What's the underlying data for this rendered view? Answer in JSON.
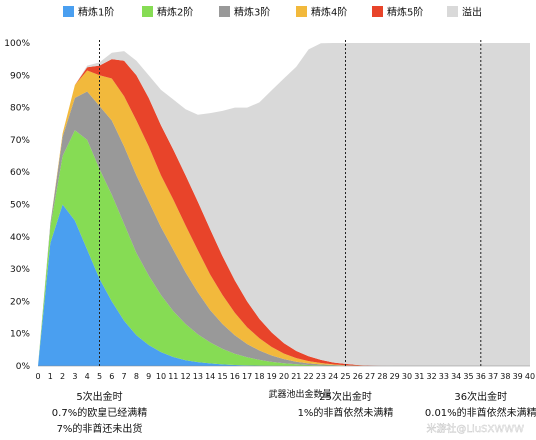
{
  "chart_data": {
    "type": "area",
    "stacked": true,
    "title": "",
    "xlabel": "武器池出金数量",
    "ylabel": "",
    "xlim": [
      0,
      40
    ],
    "ylim": [
      0,
      100
    ],
    "y_tick_suffix": "%",
    "grid": false,
    "legend_position": "top",
    "x": [
      0,
      1,
      2,
      3,
      4,
      5,
      6,
      7,
      8,
      9,
      10,
      11,
      12,
      13,
      14,
      15,
      16,
      17,
      18,
      19,
      20,
      21,
      22,
      23,
      24,
      25,
      26,
      27,
      28,
      29,
      30,
      31,
      32,
      33,
      34,
      35,
      36,
      37,
      38,
      39,
      40
    ],
    "y_ticks": [
      0,
      10,
      20,
      30,
      40,
      50,
      60,
      70,
      80,
      90,
      100
    ],
    "series": [
      {
        "name": "精炼1阶",
        "color": "#4a9ff0",
        "values": [
          0,
          38,
          50,
          45,
          36,
          27,
          20,
          14,
          9.5,
          6.5,
          4.3,
          2.8,
          1.8,
          1.2,
          0.8,
          0.5,
          0.3,
          0.2,
          0.1,
          0.07,
          0.04,
          0.03,
          0.02,
          0.01,
          0,
          0,
          0,
          0,
          0,
          0,
          0,
          0,
          0,
          0,
          0,
          0,
          0,
          0,
          0,
          0,
          0
        ]
      },
      {
        "name": "精炼2阶",
        "color": "#86dc54",
        "values": [
          0,
          5,
          15,
          28,
          34,
          34,
          33,
          30,
          25.5,
          21.5,
          17.7,
          14.2,
          11.2,
          8.6,
          6.5,
          4.8,
          3.5,
          2.5,
          1.8,
          1.2,
          0.8,
          0.5,
          0.3,
          0.2,
          0.1,
          0.05,
          0,
          0,
          0,
          0,
          0,
          0,
          0,
          0,
          0,
          0,
          0,
          0,
          0,
          0,
          0
        ]
      },
      {
        "name": "精炼3阶",
        "color": "#999999",
        "values": [
          0,
          1,
          6,
          10,
          15,
          19.5,
          23,
          24,
          24,
          23,
          21,
          19,
          16,
          13,
          10,
          7.7,
          5.7,
          4.1,
          2.9,
          2,
          1.3,
          0.8,
          0.5,
          0.3,
          0.2,
          0.1,
          0.05,
          0,
          0,
          0,
          0,
          0,
          0,
          0,
          0,
          0,
          0,
          0,
          0,
          0,
          0
        ]
      },
      {
        "name": "精炼4阶",
        "color": "#f2b93c",
        "values": [
          0,
          0,
          1,
          4,
          6.5,
          9.5,
          13,
          15.5,
          17,
          17,
          16,
          15.5,
          14.5,
          13,
          11,
          9,
          7,
          5.2,
          3.8,
          2.6,
          1.7,
          1.1,
          0.7,
          0.4,
          0.2,
          0.1,
          0.05,
          0,
          0,
          0,
          0,
          0,
          0,
          0,
          0,
          0,
          0,
          0,
          0,
          0,
          0
        ]
      },
      {
        "name": "精炼5阶",
        "color": "#e8442a",
        "values": [
          0,
          0,
          0,
          0,
          1,
          3,
          6,
          11,
          14,
          15,
          15.5,
          15.5,
          15.5,
          15,
          14,
          12,
          10,
          8,
          6,
          4.5,
          3.2,
          2.2,
          1.5,
          1,
          0.6,
          0.4,
          0.2,
          0.1,
          0.05,
          0,
          0,
          0,
          0,
          0,
          0,
          0,
          0,
          0,
          0,
          0,
          0
        ]
      },
      {
        "name": "溢出",
        "color": "#d9d9d9",
        "values": [
          0,
          0,
          0,
          0,
          0.5,
          1,
          2,
          3,
          4.5,
          7,
          11,
          15.5,
          20.5,
          27,
          36,
          45,
          53.5,
          60,
          67,
          75,
          82,
          88,
          95,
          98,
          98.9,
          99.4,
          99.7,
          99.9,
          100,
          100,
          100,
          100,
          100,
          100,
          100,
          100,
          100,
          100,
          100,
          100,
          100
        ]
      }
    ],
    "markers": [
      {
        "x": 5,
        "label_lines": [
          "5次出金时",
          "0.7%的欧皇已经满精",
          "7%的非酋还未出货"
        ]
      },
      {
        "x": 25,
        "label_lines": [
          "25次出金时",
          "1%的非酋依然未满精"
        ]
      },
      {
        "x": 36,
        "label_lines": [
          "36次出金时",
          "0.01%的非酋依然未满精"
        ]
      }
    ]
  },
  "watermark": "米游社@LiuSXWWW"
}
